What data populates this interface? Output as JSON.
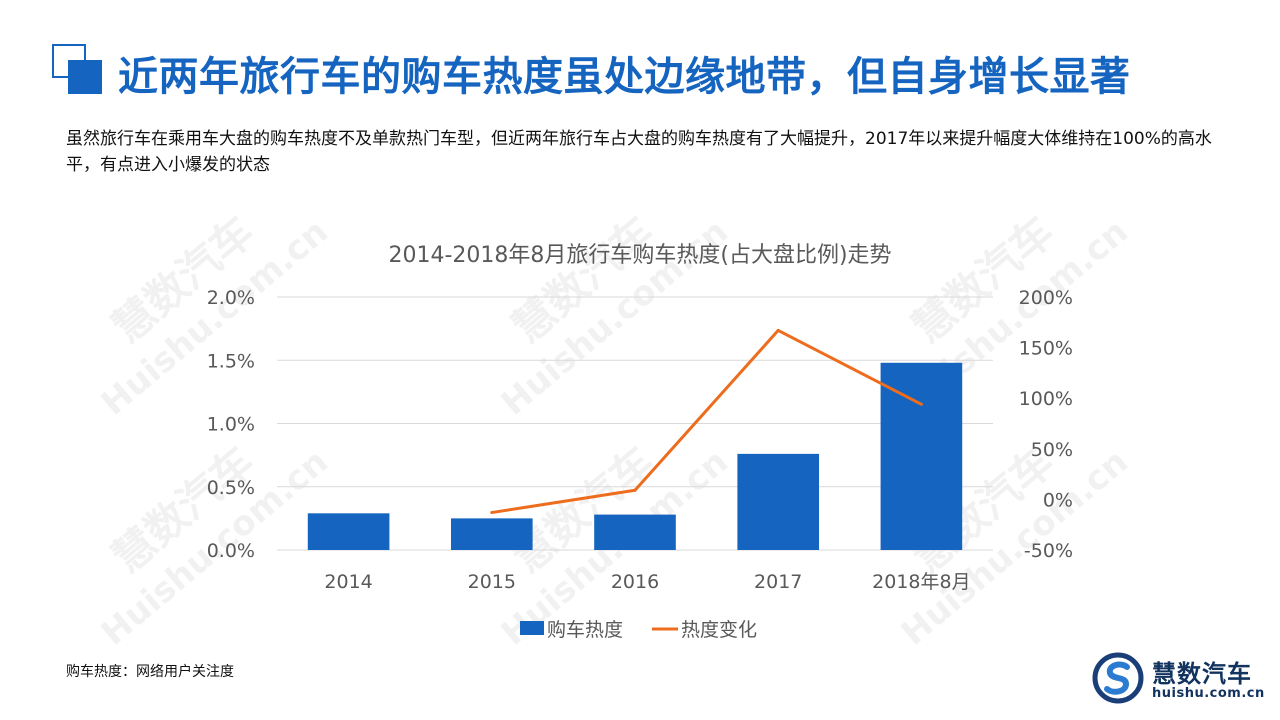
{
  "header": {
    "title": "近两年旅行车的购车热度虽处边缘地带，但自身增长显著",
    "description": "虽然旅行车在乘用车大盘的购车热度不及单款热门车型，但近两年旅行车占大盘的购车热度有了大幅提升，2017年以来提升幅度大体维持在100%的高水平，有点进入小爆发的状态"
  },
  "footnote": "购车热度：网络用户关注度",
  "brand": {
    "name": "慧数汽车",
    "url": "huishu.com.cn"
  },
  "watermark": {
    "cn": "慧数汽车",
    "en": "Huishu.com.cn"
  },
  "colors": {
    "accent": "#1565c0",
    "bar": "#1565c0",
    "line": "#ed6c1d",
    "grid": "#d9d9d9",
    "axis_text": "#595959"
  },
  "chart_data": {
    "type": "bar",
    "title": "2014-2018年8月旅行车购车热度(占大盘比例)走势",
    "categories": [
      "2014",
      "2015",
      "2016",
      "2017",
      "2018年8月"
    ],
    "y_ticks": [
      "0.0%",
      "0.5%",
      "1.0%",
      "1.5%",
      "2.0%"
    ],
    "y2_ticks": [
      "-50%",
      "0%",
      "50%",
      "100%",
      "150%",
      "200%"
    ],
    "ylim": [
      0,
      2.0
    ],
    "y2lim": [
      -50,
      200
    ],
    "series": [
      {
        "name": "购车热度",
        "type": "bar",
        "axis": "left",
        "unit": "%",
        "values": [
          0.29,
          0.25,
          0.28,
          0.76,
          1.48
        ]
      },
      {
        "name": "热度变化",
        "type": "line",
        "axis": "right",
        "unit": "%",
        "values": [
          null,
          -13,
          9,
          167,
          94
        ]
      }
    ],
    "grid": true,
    "legend": "bottom"
  }
}
